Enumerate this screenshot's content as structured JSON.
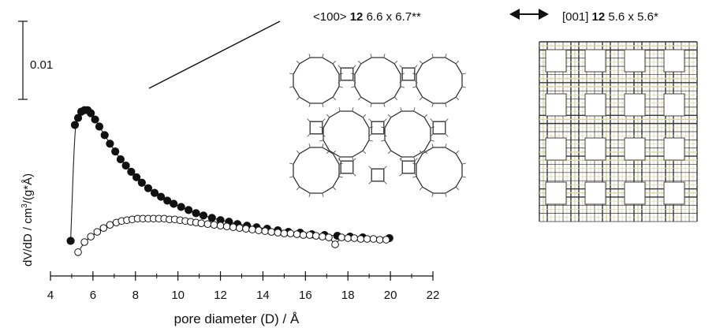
{
  "chart_data": {
    "type": "scatter",
    "title": "",
    "xlabel": "pore diameter (D)  / Å",
    "ylabel_main": "dV/dD / cm",
    "ylabel_sup": "3",
    "ylabel_tail": "/(g*Å)",
    "xlim": [
      4,
      22
    ],
    "x_ticks": [
      4,
      6,
      8,
      10,
      12,
      14,
      16,
      18,
      20,
      22
    ],
    "y_scale_bar": {
      "label": "0.01",
      "value": 0.01
    },
    "grid": false,
    "series": [
      {
        "marker": "filled-circle",
        "line": true,
        "points": [
          [
            4.95,
            5e-05
          ],
          [
            5.15,
            0.0149
          ],
          [
            5.3,
            0.0158
          ],
          [
            5.45,
            0.0166
          ],
          [
            5.6,
            0.0168
          ],
          [
            5.75,
            0.0168
          ],
          [
            5.9,
            0.0164
          ],
          [
            6.1,
            0.0156
          ],
          [
            6.3,
            0.0147
          ],
          [
            6.55,
            0.0136
          ],
          [
            6.8,
            0.0125
          ],
          [
            7.05,
            0.0115
          ],
          [
            7.3,
            0.0105
          ],
          [
            7.55,
            0.0097
          ],
          [
            7.8,
            0.0089
          ],
          [
            8.05,
            0.0082
          ],
          [
            8.3,
            0.0075
          ],
          [
            8.6,
            0.0068
          ],
          [
            8.9,
            0.0062
          ],
          [
            9.2,
            0.0057
          ],
          [
            9.5,
            0.0052
          ],
          [
            9.8,
            0.0048
          ],
          [
            10.15,
            0.0044
          ],
          [
            10.5,
            0.004
          ],
          [
            10.85,
            0.0036
          ],
          [
            11.2,
            0.0033
          ],
          [
            11.6,
            0.003
          ],
          [
            12.0,
            0.0027
          ],
          [
            12.4,
            0.0025
          ],
          [
            12.8,
            0.0022
          ],
          [
            13.25,
            0.002
          ],
          [
            13.7,
            0.0018
          ],
          [
            14.2,
            0.0016
          ],
          [
            14.7,
            0.0014
          ],
          [
            15.2,
            0.0012
          ],
          [
            15.75,
            0.0011
          ],
          [
            16.3,
            0.0009
          ],
          [
            16.9,
            0.0008
          ],
          [
            17.5,
            0.0007
          ],
          [
            18.1,
            0.0006
          ],
          [
            18.7,
            0.0005
          ],
          [
            19.95,
            0.0004
          ]
        ]
      },
      {
        "marker": "open-circle",
        "line": true,
        "points": [
          [
            5.3,
            -0.0014
          ],
          [
            5.6,
            -0.0001
          ],
          [
            5.9,
            0.0006
          ],
          [
            6.2,
            0.0012
          ],
          [
            6.5,
            0.0017
          ],
          [
            6.8,
            0.0021
          ],
          [
            7.1,
            0.0024
          ],
          [
            7.35,
            0.0026
          ],
          [
            7.6,
            0.0027
          ],
          [
            7.85,
            0.0028
          ],
          [
            8.1,
            0.0029
          ],
          [
            8.35,
            0.0029
          ],
          [
            8.6,
            0.0029
          ],
          [
            8.85,
            0.0029
          ],
          [
            9.1,
            0.0029
          ],
          [
            9.35,
            0.0029
          ],
          [
            9.6,
            0.0028
          ],
          [
            9.85,
            0.0028
          ],
          [
            10.1,
            0.0027
          ],
          [
            10.35,
            0.0026
          ],
          [
            10.6,
            0.0025
          ],
          [
            10.85,
            0.0024
          ],
          [
            11.1,
            0.0023
          ],
          [
            11.4,
            0.0022
          ],
          [
            11.7,
            0.0021
          ],
          [
            12.0,
            0.002
          ],
          [
            12.3,
            0.0019
          ],
          [
            12.6,
            0.0018
          ],
          [
            12.9,
            0.0017
          ],
          [
            13.2,
            0.0016
          ],
          [
            13.5,
            0.0015
          ],
          [
            13.8,
            0.0014
          ],
          [
            14.1,
            0.0013
          ],
          [
            14.4,
            0.0012
          ],
          [
            14.7,
            0.0011
          ],
          [
            15.0,
            0.001
          ],
          [
            15.3,
            0.001
          ],
          [
            15.6,
            0.0009
          ],
          [
            15.9,
            0.0008
          ],
          [
            16.2,
            0.0008
          ],
          [
            16.5,
            0.0007
          ],
          [
            16.8,
            0.0006
          ],
          [
            17.1,
            0.0005
          ],
          [
            17.4,
            -0.0004
          ],
          [
            17.7,
            0.0005
          ],
          [
            18.0,
            0.0004
          ],
          [
            18.3,
            0.0004
          ],
          [
            18.6,
            0.0003
          ],
          [
            18.9,
            0.0003
          ],
          [
            19.2,
            0.0003
          ],
          [
            19.5,
            0.0002
          ],
          [
            19.8,
            0.0002
          ]
        ]
      }
    ]
  },
  "structure_labels": {
    "left": {
      "prefix": "<100>",
      "ring": "12",
      "dims": "6.6 x 6.7**"
    },
    "right": {
      "prefix": "[001]",
      "ring": "12",
      "dims": "5.6 x 5.6*"
    }
  },
  "colors": {
    "ink": "#111111",
    "framework_right": "#d8d6a8"
  },
  "icons": {
    "arrow": "double-arrow-icon"
  }
}
